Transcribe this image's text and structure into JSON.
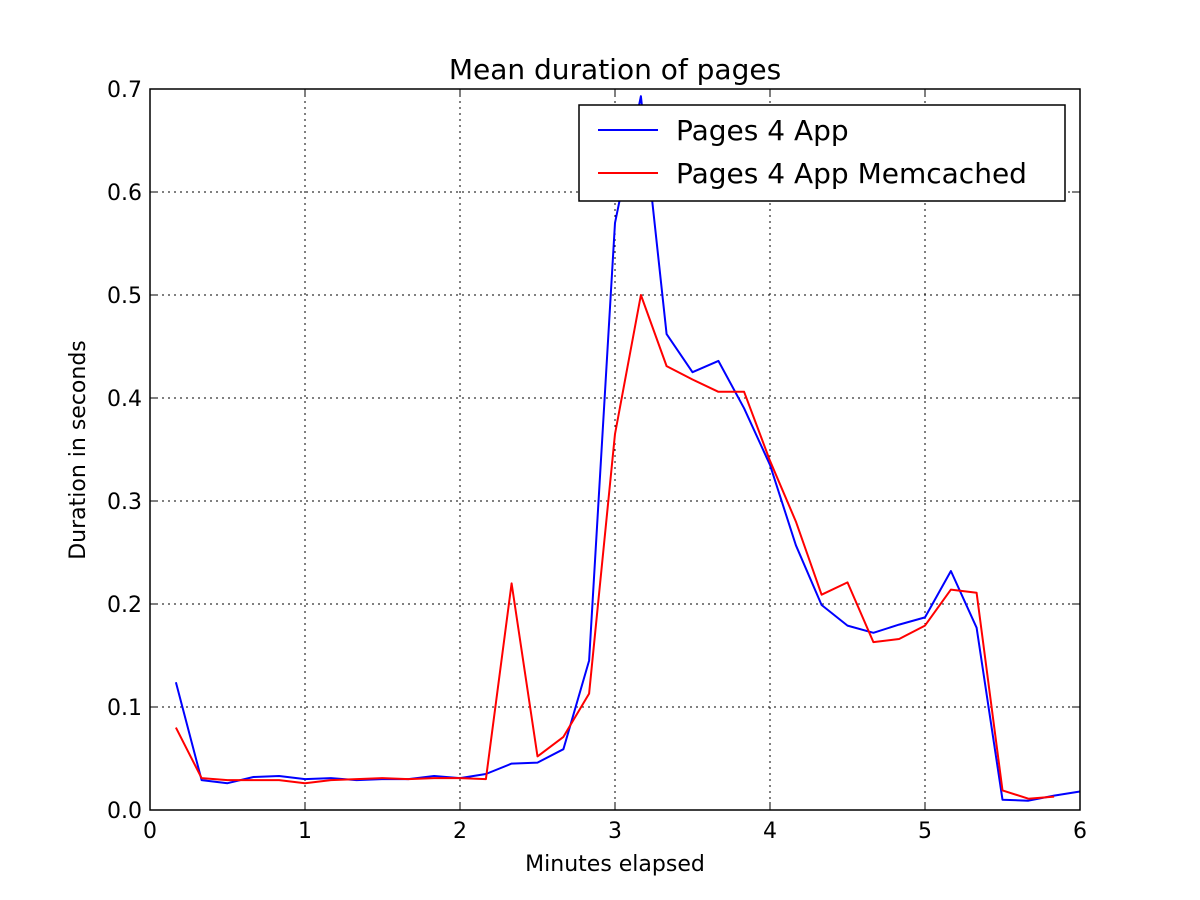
{
  "chart_data": {
    "type": "line",
    "title": "Mean duration of pages",
    "xlabel": "Minutes elapsed",
    "ylabel": "Duration in seconds",
    "xlim": [
      0,
      6
    ],
    "ylim": [
      0,
      0.7
    ],
    "xticks": [
      0,
      1,
      2,
      3,
      4,
      5,
      6
    ],
    "yticks": [
      0.0,
      0.1,
      0.2,
      0.3,
      0.4,
      0.5,
      0.6,
      0.7
    ],
    "xtick_labels": [
      "0",
      "1",
      "2",
      "3",
      "4",
      "5",
      "6"
    ],
    "ytick_labels": [
      "0.0",
      "0.1",
      "0.2",
      "0.3",
      "0.4",
      "0.5",
      "0.6",
      "0.7"
    ],
    "grid": true,
    "legend_position": "top-right",
    "series": [
      {
        "name": "Pages 4 App",
        "color": "#0000ff",
        "x": [
          0.167,
          0.333,
          0.5,
          0.667,
          0.833,
          1.0,
          1.167,
          1.333,
          1.5,
          1.667,
          1.833,
          2.0,
          2.167,
          2.333,
          2.5,
          2.667,
          2.833,
          3.0,
          3.167,
          3.333,
          3.5,
          3.667,
          3.833,
          4.0,
          4.167,
          4.333,
          4.5,
          4.667,
          4.833,
          5.0,
          5.167,
          5.333,
          5.5,
          5.667,
          5.833,
          6.0
        ],
        "y": [
          0.124,
          0.029,
          0.026,
          0.032,
          0.033,
          0.03,
          0.031,
          0.029,
          0.03,
          0.03,
          0.033,
          0.031,
          0.035,
          0.045,
          0.046,
          0.059,
          0.145,
          0.57,
          0.693,
          0.462,
          0.425,
          0.436,
          0.39,
          0.335,
          0.257,
          0.199,
          0.179,
          0.172,
          0.18,
          0.187,
          0.232,
          0.177,
          0.01,
          0.009,
          0.014,
          0.018
        ]
      },
      {
        "name": "Pages 4 App Memcached",
        "color": "#ff0000",
        "x": [
          0.167,
          0.333,
          0.5,
          0.667,
          0.833,
          1.0,
          1.167,
          1.333,
          1.5,
          1.667,
          1.833,
          2.0,
          2.167,
          2.333,
          2.5,
          2.667,
          2.833,
          3.0,
          3.167,
          3.333,
          3.5,
          3.667,
          3.833,
          4.0,
          4.167,
          4.333,
          4.5,
          4.667,
          4.833,
          5.0,
          5.167,
          5.333,
          5.5,
          5.667,
          5.833
        ],
        "y": [
          0.08,
          0.031,
          0.029,
          0.029,
          0.029,
          0.026,
          0.029,
          0.03,
          0.031,
          0.03,
          0.031,
          0.031,
          0.03,
          0.22,
          0.052,
          0.071,
          0.113,
          0.365,
          0.5,
          0.431,
          0.418,
          0.406,
          0.406,
          0.339,
          0.28,
          0.209,
          0.221,
          0.163,
          0.166,
          0.179,
          0.214,
          0.211,
          0.019,
          0.011,
          0.013
        ]
      }
    ]
  }
}
